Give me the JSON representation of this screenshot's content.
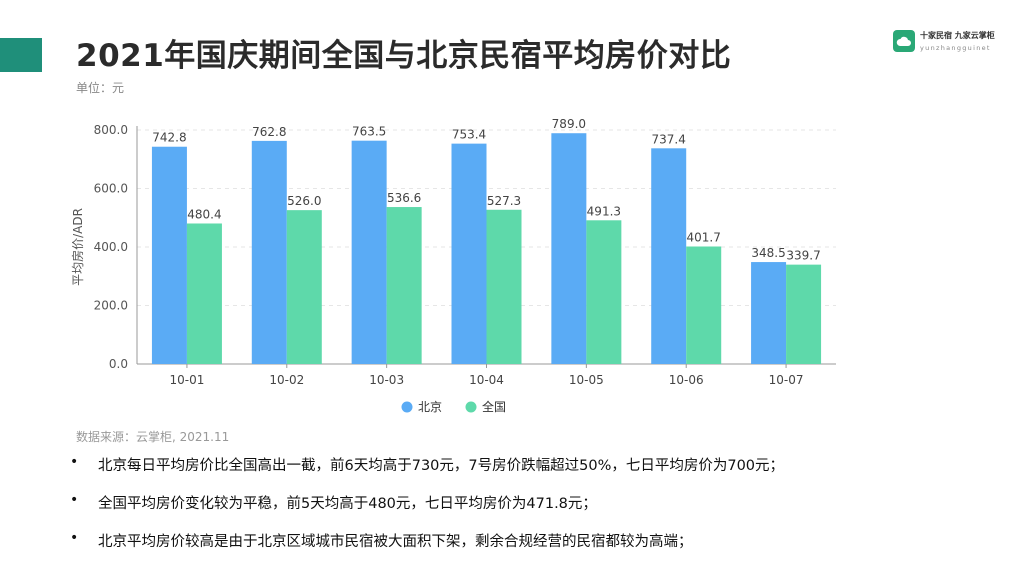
{
  "title": "2021年国庆期间全国与北京民宿平均房价对比",
  "unit": "单位：元",
  "logo": {
    "text_cn": "十家民宿 九家云掌柜",
    "text_en": "yunzhangguinet",
    "icon": "cloud-icon",
    "color": "#2aa876"
  },
  "accent_color": "#1f8f7a",
  "source": "数据来源：云掌柜, 2021.11",
  "bullets": [
    "北京每日平均房价比全国高出一截，前6天均高于730元，7号房价跌幅超过50%，七日平均房价为700元；",
    "全国平均房价变化较为平稳，前5天均高于480元，七日平均房价为471.8元；",
    "北京平均房价较高是由于北京区域城市民宿被大面积下架，剩余合规经营的民宿都较为高端；"
  ],
  "chart_data": {
    "type": "bar",
    "categories": [
      "10-01",
      "10-02",
      "10-03",
      "10-04",
      "10-05",
      "10-06",
      "10-07"
    ],
    "series": [
      {
        "name": "北京",
        "color": "#5aabf5",
        "values": [
          742.8,
          762.8,
          763.5,
          753.4,
          789.0,
          737.4,
          348.5
        ]
      },
      {
        "name": "全国",
        "color": "#5ed9aa",
        "values": [
          480.4,
          526.0,
          536.6,
          527.3,
          491.3,
          401.7,
          339.7
        ]
      }
    ],
    "ylabel": "平均房价/ADR",
    "ylim": [
      0,
      800
    ],
    "yticks": [
      "0.0",
      "200.0",
      "400.0",
      "600.0",
      "800.0"
    ],
    "grid": true,
    "legend": "bottom-center"
  }
}
